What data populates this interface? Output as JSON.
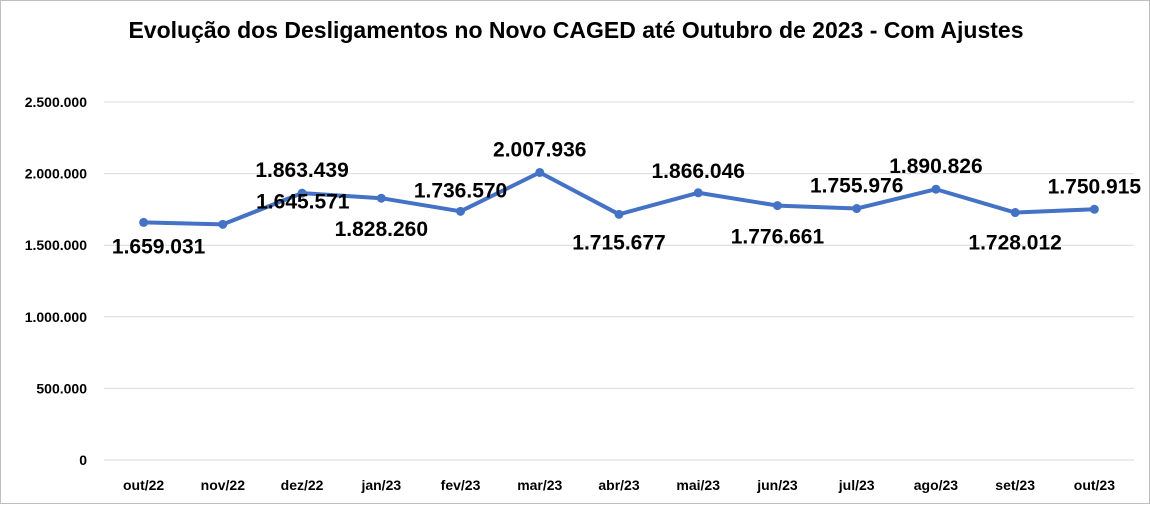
{
  "chart_data": {
    "type": "line",
    "title": "Evolução dos Desligamentos no Novo CAGED até Outubro de 2023 - Com Ajustes",
    "xlabel": "",
    "ylabel": "",
    "categories": [
      "out/22",
      "nov/22",
      "dez/22",
      "jan/23",
      "fev/23",
      "mar/23",
      "abr/23",
      "mai/23",
      "jun/23",
      "jul/23",
      "ago/23",
      "set/23",
      "out/23"
    ],
    "values": [
      1659031,
      1645571,
      1863439,
      1828260,
      1736570,
      2007936,
      1715677,
      1866046,
      1776661,
      1755976,
      1890826,
      1728012,
      1750915
    ],
    "data_labels": [
      "1.659.031",
      "1.645.571",
      "1.863.439",
      "1.828.260",
      "1.736.570",
      "2.007.936",
      "1.715.677",
      "1.866.046",
      "1.776.661",
      "1.755.976",
      "1.890.826",
      "1.728.012",
      "1.750.915"
    ],
    "ylim": [
      0,
      2500000
    ],
    "yticks": [
      0,
      500000,
      1000000,
      1500000,
      2000000,
      2500000
    ],
    "ytick_labels": [
      "0",
      "500.000",
      "1.000.000",
      "1.500.000",
      "2.000.000",
      "2.500.000"
    ],
    "grid": true,
    "legend": "none",
    "line_color": "#4472C4",
    "grid_color": "#d9d9d9"
  }
}
